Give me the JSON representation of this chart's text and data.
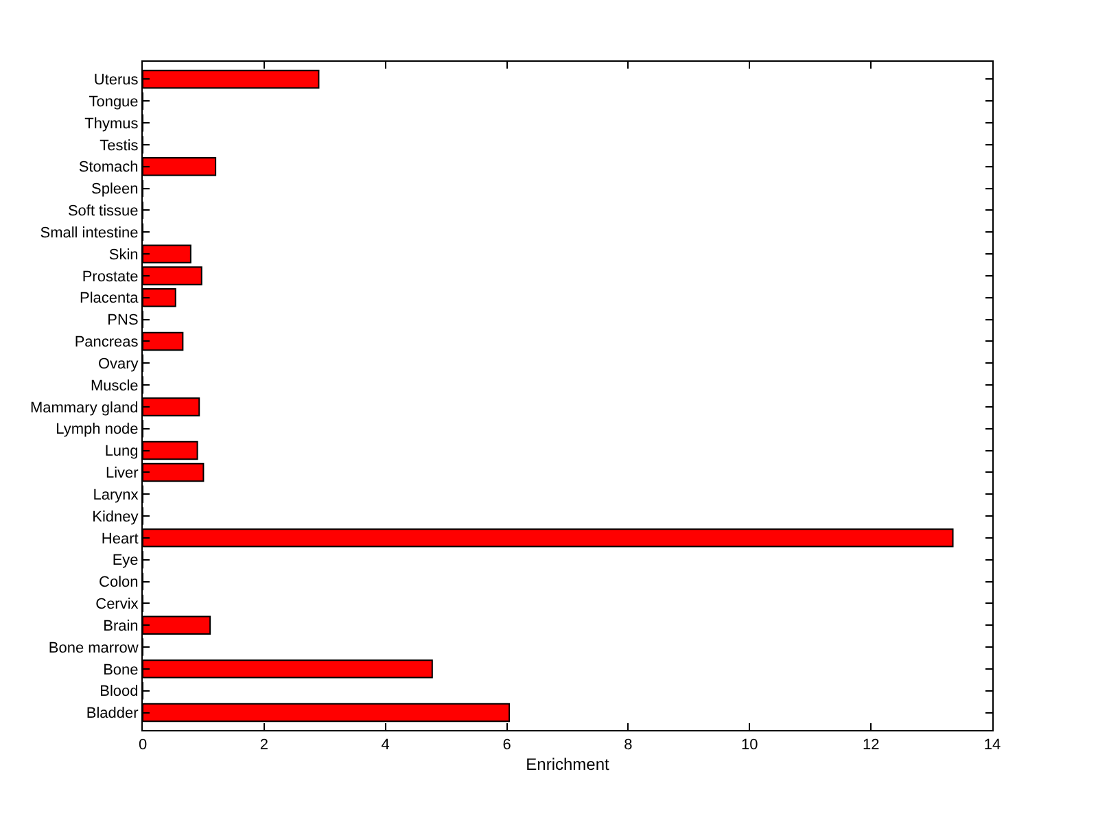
{
  "chart_data": {
    "type": "bar",
    "orientation": "horizontal",
    "xlabel": "Enrichment",
    "categories": [
      "Uterus",
      "Tongue",
      "Thymus",
      "Testis",
      "Stomach",
      "Spleen",
      "Soft tissue",
      "Small intestine",
      "Skin",
      "Prostate",
      "Placenta",
      "PNS",
      "Pancreas",
      "Ovary",
      "Muscle",
      "Mammary gland",
      "Lymph node",
      "Lung",
      "Liver",
      "Larynx",
      "Kidney",
      "Heart",
      "Eye",
      "Colon",
      "Cervix",
      "Brain",
      "Bone marrow",
      "Bone",
      "Blood",
      "Bladder"
    ],
    "values": [
      2.9,
      0,
      0,
      0,
      1.2,
      0,
      0,
      0,
      0.79,
      0.97,
      0.54,
      0,
      0.66,
      0,
      0,
      0.93,
      0,
      0.9,
      1.0,
      0,
      0,
      13.35,
      0,
      0,
      0,
      1.11,
      0,
      4.77,
      0,
      6.04
    ],
    "color": "#ff0000",
    "xlim": [
      0,
      14
    ],
    "xticks": [
      0,
      2,
      4,
      6,
      8,
      10,
      12,
      14
    ]
  }
}
